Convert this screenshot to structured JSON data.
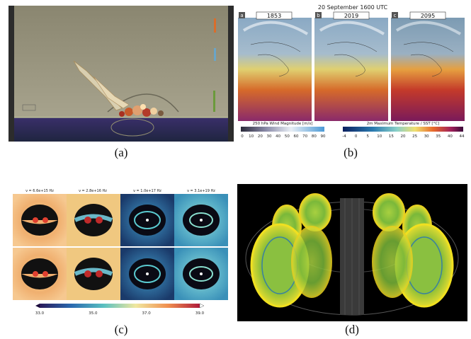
{
  "captions": {
    "a": "(a)",
    "b": "(b)",
    "c": "(c)",
    "d": "(d)"
  },
  "panel_b": {
    "title": "20 September 1600 UTC",
    "maps": [
      {
        "letter": "a",
        "year": "1853"
      },
      {
        "letter": "b",
        "year": "2019"
      },
      {
        "letter": "c",
        "year": "2095"
      }
    ],
    "wind_colorbar": {
      "label": "250 hPa Wind Magnitude [m/s]",
      "ticks": [
        "0",
        "10",
        "20",
        "30",
        "40",
        "50",
        "60",
        "70",
        "80",
        "90"
      ]
    },
    "temp_colorbar": {
      "label": "2m Maximum Temperature / SST [°C]",
      "ticks": [
        "-4",
        "0",
        "5",
        "10",
        "15",
        "20",
        "25",
        "30",
        "35",
        "40",
        "44"
      ]
    }
  },
  "panel_c": {
    "frequencies": [
      "ν = 6.6e+15 Hz",
      "ν = 2.8e+16 Hz",
      "ν = 1.0e+17 Hz",
      "ν = 3.1e+19 Hz"
    ],
    "colorbar_ticks": [
      "33.0",
      "35.0",
      "37.0",
      "39.0"
    ]
  }
}
